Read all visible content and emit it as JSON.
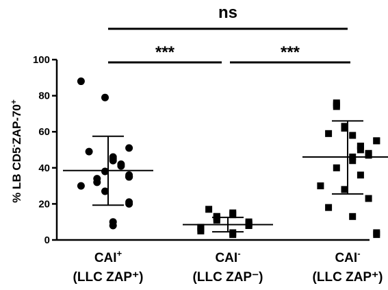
{
  "chart_data": {
    "type": "scatter",
    "title": "",
    "ylabel": {
      "parts": [
        {
          "text": "% LB CD5",
          "sup": false
        },
        {
          "text": "-",
          "sup": true
        },
        {
          "text": "ZAP-70",
          "sup": false
        },
        {
          "text": "+",
          "sup": true
        }
      ]
    },
    "ylim": [
      0,
      100
    ],
    "yticks": [
      0,
      20,
      40,
      60,
      80,
      100
    ],
    "categories": [
      {
        "line1": {
          "base": "CAI",
          "sup": "+"
        },
        "line2": "(LLC ZAP⁺)"
      },
      {
        "line1": {
          "base": "CAI",
          "sup": "-"
        },
        "line2": "(LLC ZAP⁻)"
      },
      {
        "line1": {
          "base": "CAI",
          "sup": "-"
        },
        "line2": "(LLC ZAP⁺)"
      }
    ],
    "series": [
      {
        "marker": "circle",
        "color": "#000000",
        "mean": 38.5,
        "sd_low": 19.3,
        "sd_high": 57.5,
        "values": [
          88,
          79,
          51,
          49,
          46,
          45,
          44,
          42,
          41,
          38,
          36,
          35,
          35,
          35,
          34,
          32,
          30,
          27,
          21,
          20,
          10,
          8
        ]
      },
      {
        "marker": "square",
        "color": "#000000",
        "mean": 8.5,
        "sd_low": 4.5,
        "sd_high": 12.5,
        "values": [
          17,
          15,
          14,
          13,
          13,
          12,
          11,
          10,
          9,
          9,
          9,
          8,
          8,
          7,
          7,
          6,
          5,
          4,
          3
        ]
      },
      {
        "marker": "square",
        "color": "#000000",
        "mean": 46,
        "sd_low": 25.5,
        "sd_high": 66,
        "values": [
          76,
          75,
          74,
          63,
          62,
          59,
          58,
          55,
          55,
          52,
          52,
          50,
          48,
          47,
          46,
          44,
          40,
          36,
          30,
          28,
          23,
          18,
          13,
          4,
          3
        ]
      }
    ],
    "significance": [
      {
        "label": "***",
        "from": 0,
        "to": 1
      },
      {
        "label": "***",
        "from": 1,
        "to": 2
      },
      {
        "label": "ns",
        "from": 0,
        "to": 2
      }
    ],
    "grid": false,
    "legend": "none"
  }
}
